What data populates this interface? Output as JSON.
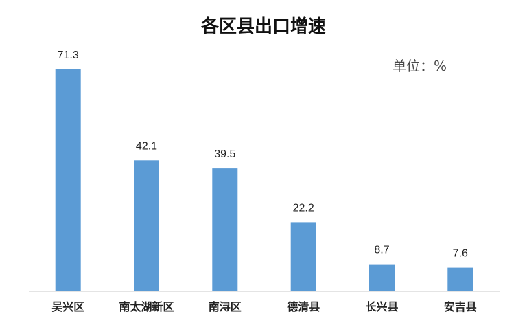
{
  "chart_data": {
    "type": "bar",
    "title": "各区县出口增速",
    "unit_label": "单位：%",
    "categories": [
      "吴兴区",
      "南太湖新区",
      "南浔区",
      "德清县",
      "长兴县",
      "安吉县"
    ],
    "values": [
      71.3,
      42.1,
      39.5,
      22.2,
      8.7,
      7.6
    ],
    "value_labels": [
      "71.3",
      "42.1",
      "39.5",
      "22.2",
      "8.7",
      "7.6"
    ],
    "xlabel": "",
    "ylabel": "",
    "ylim": [
      0,
      71.3
    ],
    "grid": false,
    "legend": "none",
    "bar_color": "#5B9BD5"
  }
}
